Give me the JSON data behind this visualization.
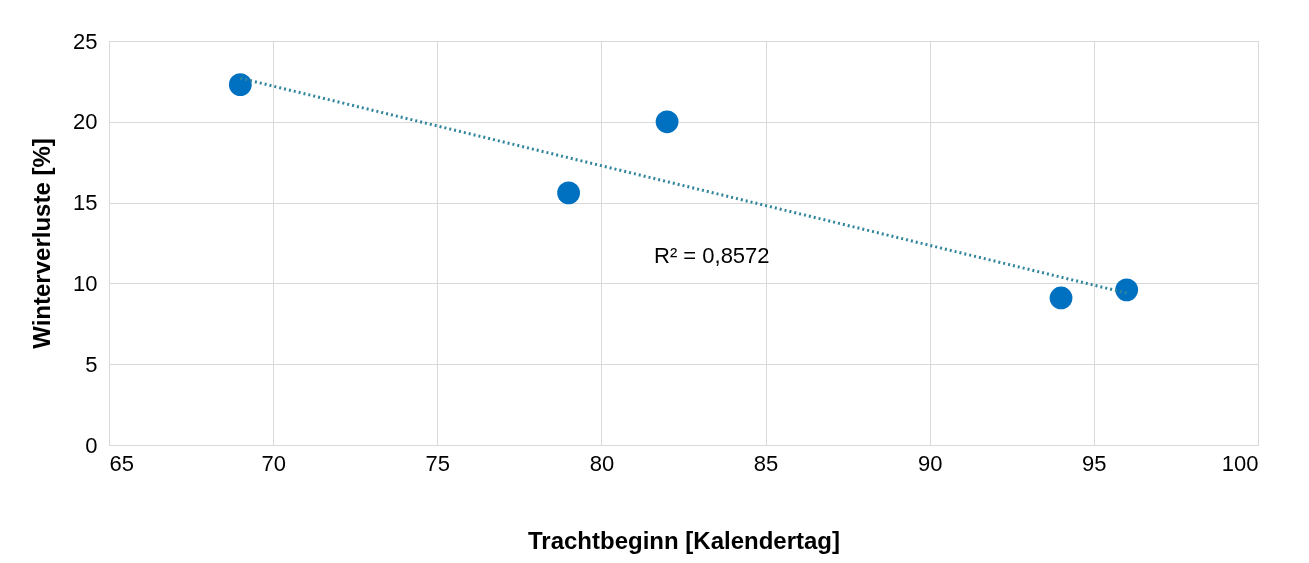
{
  "chart_data": {
    "type": "scatter",
    "xlabel": "Trachtbeginn [Kalendertag]",
    "ylabel": "Winterverluste [%]",
    "x": [
      69,
      79,
      82,
      94,
      96
    ],
    "series": [
      {
        "color": "#0070c0",
        "values": [
          22.3,
          15.6,
          20.0,
          9.1,
          9.6
        ],
        "marker": "circle"
      },
      {
        "type": "line",
        "color": "#31859c",
        "x": [
          69,
          96
        ],
        "values": [
          22.7,
          9.4
        ],
        "line_style": "dotted",
        "marker": "none"
      }
    ],
    "annotations": [
      "R² = 0,8572"
    ],
    "xlim": [
      65,
      100
    ],
    "xticks": [
      65,
      70,
      75,
      80,
      85,
      90,
      95,
      100
    ],
    "ylim": [
      0,
      25
    ],
    "yticks": [
      0,
      5,
      10,
      15,
      20,
      25
    ],
    "grid": true
  }
}
